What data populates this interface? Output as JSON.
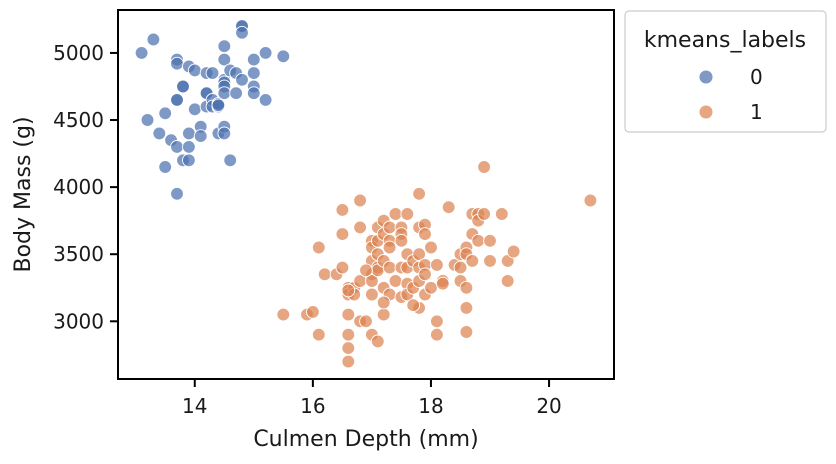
{
  "chart_data": {
    "type": "scatter",
    "title": "",
    "xlabel": "Culmen Depth (mm)",
    "ylabel": "Body Mass (g)",
    "xlim": [
      12.7,
      21.1
    ],
    "ylim": [
      2570,
      5320
    ],
    "xticks": [
      14,
      16,
      18,
      20
    ],
    "yticks": [
      3000,
      3500,
      4000,
      4500,
      5000
    ],
    "grid": false,
    "legend": {
      "title": "kmeans_labels",
      "placement": "outside-top-right"
    },
    "series": [
      {
        "name": "0",
        "color": "#4c72b0",
        "points": [
          [
            13.1,
            5000
          ],
          [
            13.3,
            5100
          ],
          [
            13.2,
            4500
          ],
          [
            13.4,
            4400
          ],
          [
            13.5,
            4550
          ],
          [
            13.5,
            4150
          ],
          [
            13.6,
            4350
          ],
          [
            13.7,
            4950
          ],
          [
            13.7,
            4920
          ],
          [
            13.7,
            4650
          ],
          [
            13.7,
            4650
          ],
          [
            13.7,
            4300
          ],
          [
            13.7,
            3950
          ],
          [
            13.8,
            4750
          ],
          [
            13.8,
            4750
          ],
          [
            13.8,
            4200
          ],
          [
            13.9,
            4900
          ],
          [
            13.9,
            4400
          ],
          [
            13.9,
            4300
          ],
          [
            13.9,
            4200
          ],
          [
            14.0,
            4870
          ],
          [
            14.0,
            4580
          ],
          [
            14.1,
            4450
          ],
          [
            14.1,
            4380
          ],
          [
            14.2,
            4850
          ],
          [
            14.2,
            4600
          ],
          [
            14.2,
            4700
          ],
          [
            14.2,
            4700
          ],
          [
            14.3,
            4850
          ],
          [
            14.3,
            4650
          ],
          [
            14.3,
            4600
          ],
          [
            14.4,
            4400
          ],
          [
            14.4,
            4600
          ],
          [
            14.4,
            4620
          ],
          [
            14.5,
            5050
          ],
          [
            14.5,
            4950
          ],
          [
            14.5,
            4800
          ],
          [
            14.5,
            4780
          ],
          [
            14.5,
            4750
          ],
          [
            14.5,
            4700
          ],
          [
            14.5,
            4450
          ],
          [
            14.5,
            4400
          ],
          [
            14.6,
            4870
          ],
          [
            14.6,
            4200
          ],
          [
            14.7,
            4850
          ],
          [
            14.7,
            4700
          ],
          [
            14.8,
            5200
          ],
          [
            14.8,
            5200
          ],
          [
            14.8,
            5150
          ],
          [
            14.8,
            4800
          ],
          [
            15.0,
            4950
          ],
          [
            15.0,
            4850
          ],
          [
            15.0,
            4750
          ],
          [
            15.0,
            4700
          ],
          [
            15.2,
            5000
          ],
          [
            15.2,
            4650
          ],
          [
            15.5,
            4975
          ],
          [
            14.4,
            4610
          ]
        ]
      },
      {
        "name": "1",
        "color": "#dd8452",
        "points": [
          [
            15.5,
            3050
          ],
          [
            15.9,
            3050
          ],
          [
            16.0,
            3070
          ],
          [
            16.1,
            3550
          ],
          [
            16.1,
            2900
          ],
          [
            16.2,
            3350
          ],
          [
            16.4,
            3350
          ],
          [
            16.5,
            3830
          ],
          [
            16.5,
            3650
          ],
          [
            16.5,
            3400
          ],
          [
            16.6,
            3250
          ],
          [
            16.6,
            3200
          ],
          [
            16.6,
            3050
          ],
          [
            16.6,
            2900
          ],
          [
            16.6,
            2800
          ],
          [
            16.6,
            2700
          ],
          [
            16.7,
            3250
          ],
          [
            16.7,
            3200
          ],
          [
            16.8,
            3900
          ],
          [
            16.8,
            3700
          ],
          [
            16.8,
            3300
          ],
          [
            16.8,
            3000
          ],
          [
            16.9,
            3000
          ],
          [
            17.0,
            3600
          ],
          [
            17.0,
            3550
          ],
          [
            17.0,
            3450
          ],
          [
            17.0,
            3350
          ],
          [
            17.0,
            3300
          ],
          [
            17.0,
            3200
          ],
          [
            17.0,
            2900
          ],
          [
            17.1,
            3700
          ],
          [
            17.1,
            3600
          ],
          [
            17.1,
            3500
          ],
          [
            17.1,
            3400
          ],
          [
            17.1,
            3380
          ],
          [
            17.1,
            2850
          ],
          [
            17.2,
            3750
          ],
          [
            17.2,
            3650
          ],
          [
            17.2,
            3450
          ],
          [
            17.2,
            3250
          ],
          [
            17.2,
            3050
          ],
          [
            17.3,
            3700
          ],
          [
            17.3,
            3600
          ],
          [
            17.3,
            3550
          ],
          [
            17.3,
            3400
          ],
          [
            17.3,
            3200
          ],
          [
            17.4,
            3800
          ],
          [
            17.4,
            3300
          ],
          [
            17.5,
            3700
          ],
          [
            17.5,
            3650
          ],
          [
            17.5,
            3600
          ],
          [
            17.5,
            3400
          ],
          [
            17.5,
            3180
          ],
          [
            17.6,
            3800
          ],
          [
            17.6,
            3500
          ],
          [
            17.6,
            3400
          ],
          [
            17.6,
            3280
          ],
          [
            17.6,
            3200
          ],
          [
            17.7,
            3450
          ],
          [
            17.7,
            3250
          ],
          [
            17.8,
            3950
          ],
          [
            17.8,
            3700
          ],
          [
            17.8,
            3500
          ],
          [
            17.8,
            3400
          ],
          [
            17.8,
            3300
          ],
          [
            17.8,
            3100
          ],
          [
            17.9,
            3720
          ],
          [
            17.9,
            3650
          ],
          [
            17.9,
            3420
          ],
          [
            17.9,
            3350
          ],
          [
            17.9,
            3200
          ],
          [
            18.0,
            3550
          ],
          [
            18.0,
            3250
          ],
          [
            18.1,
            3420
          ],
          [
            18.1,
            3000
          ],
          [
            18.1,
            2900
          ],
          [
            18.2,
            3300
          ],
          [
            18.3,
            3850
          ],
          [
            18.4,
            3420
          ],
          [
            18.5,
            3500
          ],
          [
            18.5,
            3400
          ],
          [
            18.5,
            3300
          ],
          [
            18.6,
            3550
          ],
          [
            18.6,
            3500
          ],
          [
            18.6,
            3250
          ],
          [
            18.6,
            3100
          ],
          [
            18.7,
            3800
          ],
          [
            18.7,
            3650
          ],
          [
            18.7,
            3450
          ],
          [
            18.8,
            3800
          ],
          [
            18.8,
            3750
          ],
          [
            18.8,
            3600
          ],
          [
            18.9,
            4150
          ],
          [
            18.9,
            3800
          ],
          [
            19.0,
            3600
          ],
          [
            19.0,
            3450
          ],
          [
            19.2,
            3800
          ],
          [
            19.3,
            3450
          ],
          [
            19.3,
            3300
          ],
          [
            19.4,
            3520
          ],
          [
            20.7,
            3900
          ],
          [
            18.6,
            2920
          ],
          [
            16.6,
            3230
          ],
          [
            16.9,
            3380
          ],
          [
            17.2,
            3140
          ],
          [
            17.7,
            3120
          ],
          [
            18.2,
            3280
          ]
        ]
      }
    ]
  }
}
